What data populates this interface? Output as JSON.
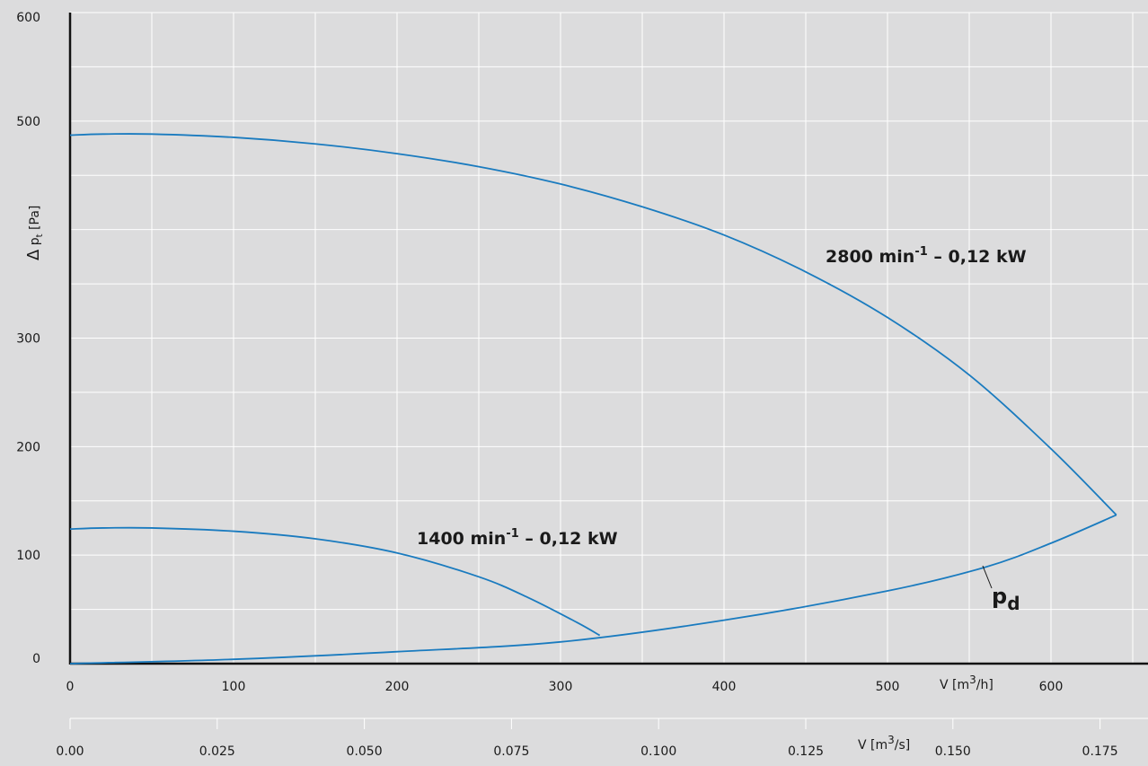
{
  "chart_data": {
    "type": "line",
    "title": "",
    "ylabel": "Δ pt [Pa]",
    "ylim": [
      0,
      600
    ],
    "y_ticks": [
      "0",
      "100",
      "200",
      "300",
      "500",
      "600"
    ],
    "x_primary": {
      "label": "V [m³/h]",
      "range": [
        0,
        675
      ],
      "ticks": [
        "0",
        "100",
        "200",
        "300",
        "400",
        "500",
        "600"
      ]
    },
    "x_secondary": {
      "label": "V [m³/s]",
      "range": [
        0,
        0.1875
      ],
      "ticks": [
        "0.00",
        "0.025",
        "0.050",
        "0.075",
        "0.100",
        "0.125",
        "0.150",
        "0.175"
      ]
    },
    "grid": true,
    "series": [
      {
        "name": "2800 min-1 – 0,12 kW",
        "color": "#1a7bbf",
        "x": [
          0,
          20,
          50,
          100,
          150,
          200,
          250,
          300,
          350,
          400,
          450,
          500,
          550,
          600,
          640
        ],
        "y": [
          487,
          488,
          488,
          485,
          479,
          470,
          458,
          442,
          421,
          395,
          361,
          319,
          266,
          198,
          137
        ]
      },
      {
        "name": "1400 min-1 – 0,12 kW",
        "color": "#1a7bbf",
        "x": [
          0,
          20,
          50,
          100,
          150,
          200,
          250,
          280,
          310,
          324
        ],
        "y": [
          124,
          125,
          125,
          122,
          115,
          102,
          80,
          61,
          38,
          26
        ]
      },
      {
        "name": "pd",
        "color": "#1a7bbf",
        "x": [
          0,
          100,
          200,
          300,
          400,
          500,
          560,
          600,
          640
        ],
        "y": [
          0,
          4,
          11,
          20,
          40,
          67,
          89,
          111,
          137
        ]
      }
    ],
    "annotations": {
      "label_2800_main": "2800 min",
      "label_2800_sup": "-1",
      "label_2800_tail": " – 0,12 kW",
      "label_1400_main": "1400 min",
      "label_1400_sup": "-1",
      "label_1400_tail": " – 0,12 kW",
      "pd_main": "p",
      "pd_sub": "d",
      "xlabel_h_main": "V [m",
      "xlabel_h_sup": "3",
      "xlabel_h_tail": "/h]",
      "xlabel_s_main": "V [m",
      "xlabel_s_sup": "3",
      "xlabel_s_tail": "/s]",
      "ylabel_delta": "Δ",
      "ylabel_p": " p",
      "ylabel_sub": "t",
      "ylabel_unit": " [Pa]"
    }
  }
}
